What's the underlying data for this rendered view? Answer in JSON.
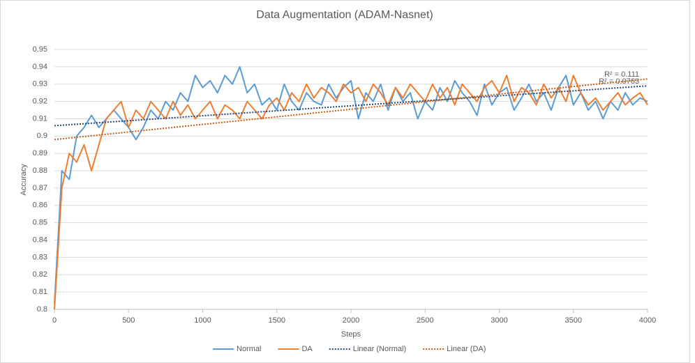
{
  "chart_data": {
    "type": "line",
    "title": "Data Augmentation (ADAM-Nasnet)",
    "x_label": "Steps",
    "y_label": "Accuracy",
    "x": [
      0,
      50,
      100,
      150,
      200,
      250,
      300,
      350,
      400,
      450,
      500,
      550,
      600,
      650,
      700,
      750,
      800,
      850,
      900,
      950,
      1000,
      1050,
      1100,
      1150,
      1200,
      1250,
      1300,
      1350,
      1400,
      1450,
      1500,
      1550,
      1600,
      1650,
      1700,
      1750,
      1800,
      1850,
      1900,
      1950,
      2000,
      2050,
      2100,
      2150,
      2200,
      2250,
      2300,
      2350,
      2400,
      2450,
      2500,
      2550,
      2600,
      2650,
      2700,
      2750,
      2800,
      2850,
      2900,
      2950,
      3000,
      3050,
      3100,
      3150,
      3200,
      3250,
      3300,
      3350,
      3400,
      3450,
      3500,
      3550,
      3600,
      3650,
      3700,
      3750,
      3800,
      3850,
      3900,
      3950,
      4000
    ],
    "series": [
      {
        "name": "Normal",
        "color": "#5b9bd5",
        "values": [
          0.803,
          0.88,
          0.875,
          0.9,
          0.905,
          0.912,
          0.905,
          0.91,
          0.915,
          0.91,
          0.905,
          0.898,
          0.905,
          0.915,
          0.91,
          0.92,
          0.915,
          0.925,
          0.92,
          0.935,
          0.928,
          0.932,
          0.925,
          0.935,
          0.93,
          0.94,
          0.925,
          0.93,
          0.918,
          0.922,
          0.915,
          0.93,
          0.92,
          0.915,
          0.925,
          0.92,
          0.918,
          0.93,
          0.922,
          0.928,
          0.932,
          0.91,
          0.925,
          0.92,
          0.93,
          0.915,
          0.928,
          0.92,
          0.925,
          0.91,
          0.92,
          0.915,
          0.928,
          0.92,
          0.932,
          0.925,
          0.92,
          0.912,
          0.93,
          0.918,
          0.925,
          0.928,
          0.915,
          0.922,
          0.93,
          0.92,
          0.925,
          0.915,
          0.928,
          0.935,
          0.918,
          0.925,
          0.915,
          0.92,
          0.91,
          0.92,
          0.915,
          0.925,
          0.918,
          0.922,
          0.92
        ]
      },
      {
        "name": "DA",
        "color": "#ed7d31",
        "values": [
          0.8,
          0.87,
          0.89,
          0.885,
          0.895,
          0.88,
          0.895,
          0.91,
          0.915,
          0.92,
          0.905,
          0.915,
          0.91,
          0.92,
          0.915,
          0.91,
          0.92,
          0.912,
          0.918,
          0.91,
          0.915,
          0.92,
          0.91,
          0.918,
          0.915,
          0.91,
          0.92,
          0.915,
          0.91,
          0.918,
          0.922,
          0.915,
          0.925,
          0.92,
          0.93,
          0.922,
          0.928,
          0.925,
          0.92,
          0.93,
          0.925,
          0.928,
          0.92,
          0.93,
          0.925,
          0.918,
          0.928,
          0.922,
          0.93,
          0.925,
          0.92,
          0.93,
          0.922,
          0.928,
          0.918,
          0.93,
          0.925,
          0.92,
          0.928,
          0.932,
          0.925,
          0.935,
          0.92,
          0.928,
          0.925,
          0.918,
          0.93,
          0.922,
          0.928,
          0.92,
          0.935,
          0.925,
          0.918,
          0.922,
          0.915,
          0.92,
          0.925,
          0.918,
          0.922,
          0.925,
          0.918
        ]
      }
    ],
    "trendlines": [
      {
        "name": "Linear (Normal)",
        "color": "#264478",
        "x": [
          0,
          4000
        ],
        "values": [
          0.906,
          0.929
        ],
        "label": "R² = 0.0763"
      },
      {
        "name": "Linear (DA)",
        "color": "#c55a11",
        "x": [
          0,
          4000
        ],
        "values": [
          0.898,
          0.933
        ],
        "label": "R² = 0.111"
      }
    ],
    "xlim": [
      0,
      4000
    ],
    "xticks": [
      0,
      500,
      1000,
      1500,
      2000,
      2500,
      3000,
      3500,
      4000
    ],
    "ylim": [
      0.8,
      0.95
    ],
    "yticks": [
      0.8,
      0.81,
      0.82,
      0.83,
      0.84,
      0.85,
      0.86,
      0.87,
      0.88,
      0.89,
      0.9,
      0.91,
      0.92,
      0.93,
      0.94,
      0.95
    ],
    "grid": true,
    "legend": "bottom"
  }
}
